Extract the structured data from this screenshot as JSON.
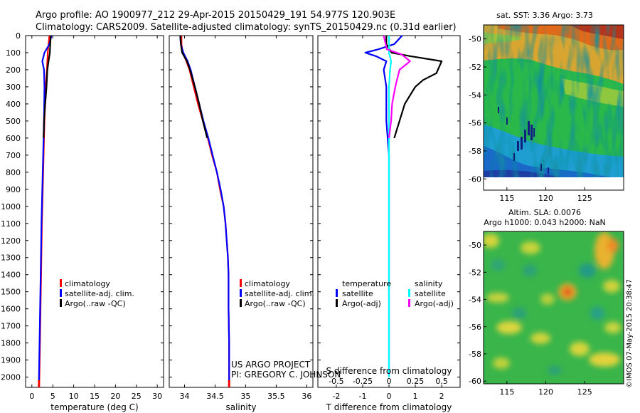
{
  "header": {
    "line1": "Argo profile: AO 1900977_212 29-Apr-2015 20150429_191 54.977S 120.903E",
    "line2": "Climatology: CARS2009. Satellite-adjusted climatology: synTS_20150429.nc (0.31d earlier)"
  },
  "credit": "©IMOS 07-May-2015 20:38:47",
  "project": {
    "line1": "US ARGO PROJECT",
    "line2": "PI: GREGORY C. JOHNSON"
  },
  "colors": {
    "climatology": "#ff0000",
    "satellite": "#0000ff",
    "argo": "#000000",
    "salinity_satellite": "#00ffff",
    "salinity_argo": "#ff00ff"
  },
  "chart_data": [
    {
      "id": "temperature-profile",
      "type": "line",
      "xlabel": "temperature (deg C)",
      "xlim": [
        -1.5,
        31.5
      ],
      "xticks": [
        0,
        5,
        10,
        15,
        20,
        25,
        30
      ],
      "ylim": [
        2060,
        0
      ],
      "yticks": [
        0,
        100,
        200,
        300,
        400,
        500,
        600,
        700,
        800,
        900,
        1000,
        1100,
        1200,
        1300,
        1400,
        1500,
        1600,
        1700,
        1800,
        1900,
        2000
      ],
      "legend": {
        "placement": "lower-center",
        "entries": [
          "climatology",
          "satellite-adj. clim.",
          "Argo(..raw -QC)"
        ]
      },
      "series": [
        {
          "name": "climatology",
          "color": "climatology",
          "points": [
            [
              4.2,
              0
            ],
            [
              4.0,
              50
            ],
            [
              3.8,
              100
            ],
            [
              3.6,
              200
            ],
            [
              3.3,
              300
            ],
            [
              3.0,
              500
            ],
            [
              2.8,
              700
            ],
            [
              2.6,
              900
            ],
            [
              2.4,
              1100
            ],
            [
              2.2,
              1400
            ],
            [
              2.0,
              1700
            ],
            [
              1.8,
              2000
            ],
            [
              1.7,
              2060
            ]
          ]
        },
        {
          "name": "satellite-adj. clim.",
          "color": "satellite",
          "points": [
            [
              4.7,
              0
            ],
            [
              4.2,
              50
            ],
            [
              3.0,
              100
            ],
            [
              2.5,
              150
            ],
            [
              2.9,
              200
            ],
            [
              3.0,
              300
            ],
            [
              2.9,
              500
            ],
            [
              2.7,
              700
            ],
            [
              2.5,
              900
            ],
            [
              2.3,
              1100
            ],
            [
              2.1,
              1400
            ],
            [
              1.9,
              1700
            ],
            [
              1.7,
              2000
            ],
            [
              1.7,
              2060
            ]
          ]
        },
        {
          "name": "Argo(..raw -QC)",
          "color": "argo",
          "points": [
            [
              4.5,
              0
            ],
            [
              4.4,
              50
            ],
            [
              4.3,
              100
            ],
            [
              4.0,
              150
            ],
            [
              3.7,
              200
            ],
            [
              3.5,
              300
            ],
            [
              3.2,
              400
            ],
            [
              2.9,
              500
            ],
            [
              2.8,
              600
            ]
          ]
        }
      ]
    },
    {
      "id": "salinity-profile",
      "type": "line",
      "xlabel": "salinity",
      "xlim": [
        33.75,
        36.1
      ],
      "xticks": [
        34,
        34.5,
        35,
        35.5,
        36
      ],
      "ylim": [
        2060,
        0
      ],
      "legend": {
        "placement": "lower-center",
        "entries": [
          "climatology",
          "satellite-adj. clim.",
          "Argo(..raw -QC)"
        ]
      },
      "series": [
        {
          "name": "climatology",
          "color": "climatology",
          "points": [
            [
              33.95,
              0
            ],
            [
              33.95,
              50
            ],
            [
              33.97,
              100
            ],
            [
              34.03,
              150
            ],
            [
              34.08,
              200
            ],
            [
              34.15,
              300
            ],
            [
              34.22,
              400
            ],
            [
              34.3,
              500
            ],
            [
              34.38,
              600
            ],
            [
              34.45,
              700
            ],
            [
              34.53,
              800
            ],
            [
              34.58,
              900
            ],
            [
              34.64,
              1000
            ],
            [
              34.67,
              1100
            ],
            [
              34.69,
              1200
            ],
            [
              34.71,
              1300
            ],
            [
              34.72,
              1400
            ],
            [
              34.72,
              1600
            ],
            [
              34.73,
              1800
            ],
            [
              34.73,
              2000
            ],
            [
              34.73,
              2060
            ]
          ]
        },
        {
          "name": "satellite-adj. clim.",
          "color": "satellite",
          "points": [
            [
              33.93,
              0
            ],
            [
              33.94,
              50
            ],
            [
              33.98,
              100
            ],
            [
              34.05,
              150
            ],
            [
              34.1,
              200
            ],
            [
              34.17,
              300
            ],
            [
              34.24,
              400
            ],
            [
              34.31,
              500
            ],
            [
              34.39,
              600
            ],
            [
              34.46,
              700
            ],
            [
              34.53,
              800
            ],
            [
              34.59,
              900
            ],
            [
              34.64,
              1000
            ],
            [
              34.67,
              1100
            ],
            [
              34.69,
              1200
            ],
            [
              34.71,
              1300
            ],
            [
              34.72,
              1400
            ],
            [
              34.72,
              1600
            ],
            [
              34.73,
              1800
            ],
            [
              34.73,
              2000
            ],
            [
              34.73,
              2060
            ]
          ]
        },
        {
          "name": "Argo(..raw -QC)",
          "color": "argo",
          "points": [
            [
              33.93,
              0
            ],
            [
              33.94,
              50
            ],
            [
              33.96,
              100
            ],
            [
              34.04,
              150
            ],
            [
              34.09,
              200
            ],
            [
              34.17,
              300
            ],
            [
              34.24,
              400
            ],
            [
              34.3,
              500
            ],
            [
              34.37,
              600
            ]
          ]
        }
      ]
    },
    {
      "id": "difference-profile",
      "type": "line",
      "xlabel": "T difference from climatology",
      "xlabel_top": "S difference from climatology",
      "xlim": [
        -2.7,
        2.7
      ],
      "xticks": [
        -2,
        -1,
        0,
        1,
        2
      ],
      "xticks_top_labels": [
        "-0.5",
        "-0.25",
        "0",
        "0.25",
        "0.5"
      ],
      "ylim": [
        2060,
        0
      ],
      "legend": {
        "placement": "lower-center",
        "temperature_title": "temperature",
        "salinity_title": "salinity",
        "entries": [
          "satellite",
          "Argo(-adj)",
          "satellite",
          "Argo(-adj)"
        ]
      },
      "series": [
        {
          "name": "temperature satellite",
          "color": "satellite",
          "points": [
            [
              0.5,
              0
            ],
            [
              0.2,
              50
            ],
            [
              -0.4,
              80
            ],
            [
              -0.9,
              100
            ],
            [
              -0.5,
              120
            ],
            [
              -0.1,
              150
            ],
            [
              -0.2,
              200
            ],
            [
              -0.1,
              300
            ],
            [
              -0.1,
              500
            ],
            [
              0.0,
              700
            ],
            [
              0.0,
              900
            ],
            [
              0.0,
              1100
            ],
            [
              0.0,
              1400
            ],
            [
              0.0,
              1700
            ],
            [
              0.0,
              2000
            ]
          ]
        },
        {
          "name": "temperature Argo(-adj)",
          "color": "argo",
          "points": [
            [
              -0.1,
              0
            ],
            [
              -0.1,
              50
            ],
            [
              0.1,
              100
            ],
            [
              0.8,
              120
            ],
            [
              2.0,
              150
            ],
            [
              1.8,
              220
            ],
            [
              1.3,
              260
            ],
            [
              1.0,
              300
            ],
            [
              0.6,
              400
            ],
            [
              0.4,
              500
            ],
            [
              0.2,
              600
            ]
          ]
        },
        {
          "name": "salinity satellite",
          "color": "salinity_satellite",
          "points": [
            [
              0.0,
              0
            ],
            [
              0.0,
              100
            ],
            [
              0.02,
              150
            ],
            [
              0.01,
              200
            ],
            [
              0.0,
              300
            ],
            [
              0.0,
              500
            ],
            [
              0.0,
              700
            ],
            [
              0.0,
              1000
            ],
            [
              0.0,
              1400
            ],
            [
              0.0,
              1800
            ],
            [
              0.0,
              2000
            ]
          ]
        },
        {
          "name": "salinity Argo(-adj)",
          "color": "salinity_argo",
          "points": [
            [
              -0.05,
              0
            ],
            [
              -0.02,
              80
            ],
            [
              0.12,
              110
            ],
            [
              0.2,
              150
            ],
            [
              0.1,
              200
            ],
            [
              0.06,
              300
            ],
            [
              0.03,
              400
            ],
            [
              0.02,
              500
            ],
            [
              0.0,
              600
            ]
          ]
        }
      ]
    },
    {
      "id": "sst-map",
      "type": "heatmap",
      "title": "sat. SST: 3.36 Argo: 3.73",
      "xlim": [
        112,
        130
      ],
      "xticks": [
        115,
        120,
        125
      ],
      "ylim": [
        -60.8,
        -49
      ],
      "yticks": [
        -50,
        -52,
        -54,
        -56,
        -58,
        -60
      ],
      "data_extent_y": [
        -60,
        -49
      ]
    },
    {
      "id": "sla-map",
      "type": "heatmap",
      "title_line1": "Altim. SLA: 0.0076",
      "title_line2": "Argo h1000: 0.043 h2000: NaN",
      "xlim": [
        112,
        130
      ],
      "xticks": [
        115,
        120,
        125
      ],
      "ylim": [
        -60.2,
        -49
      ],
      "yticks": [
        -50,
        -52,
        -54,
        -56,
        -58,
        -60
      ]
    }
  ]
}
